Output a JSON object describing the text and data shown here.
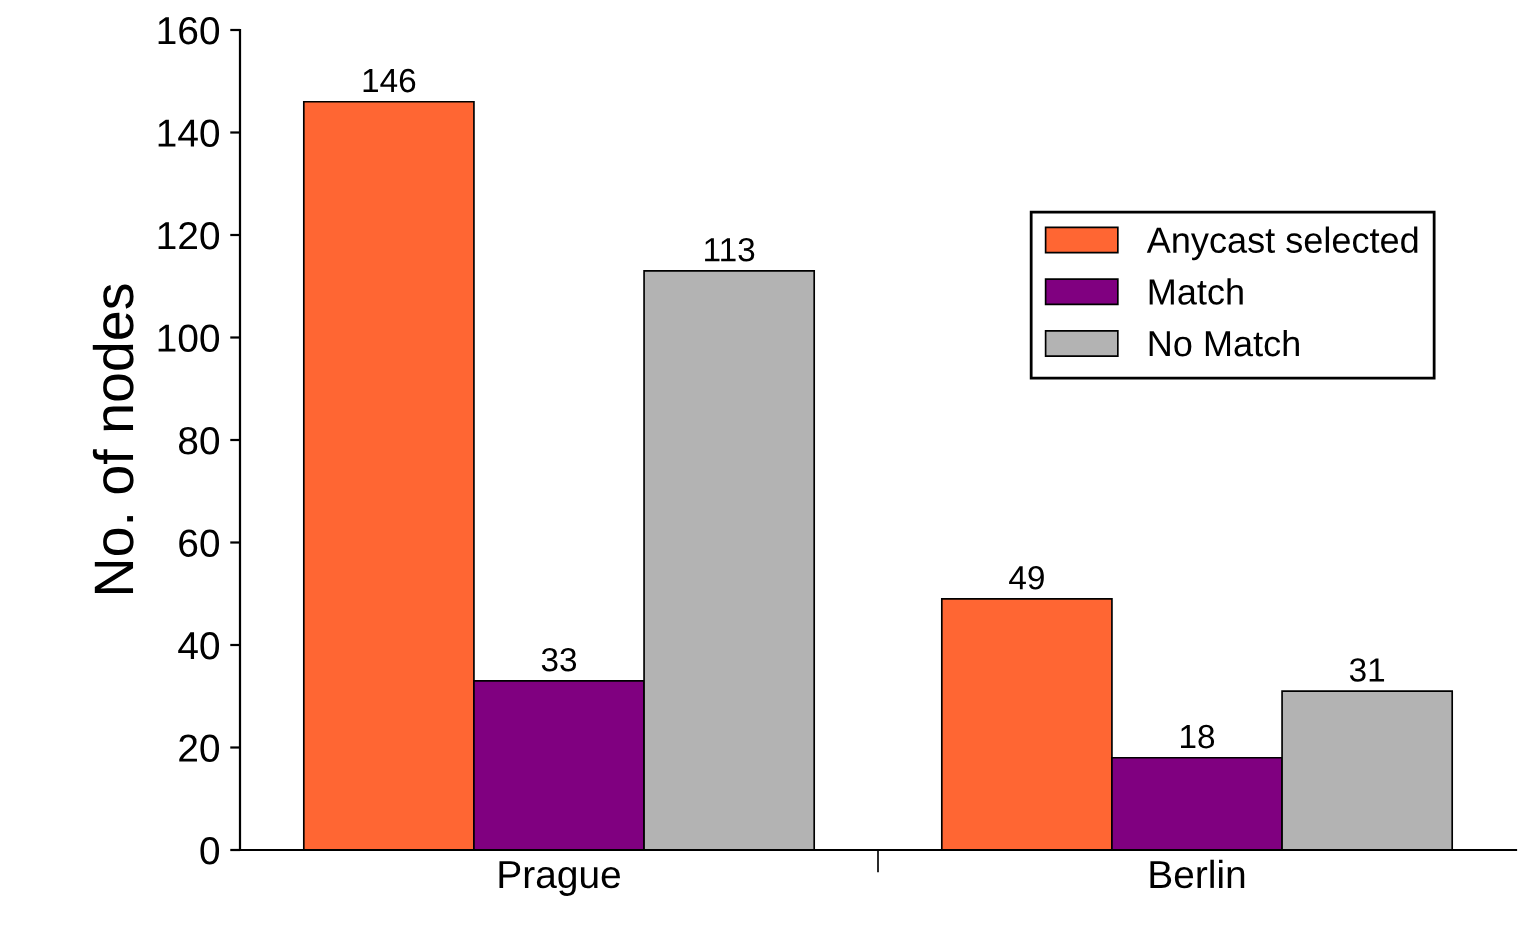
{
  "chart_data": {
    "type": "bar",
    "ylabel": "No. of nodes",
    "categories": [
      "Prague",
      "Berlin"
    ],
    "series": [
      {
        "name": "Anycast selected",
        "color": "#ff6633",
        "values": [
          146,
          49
        ]
      },
      {
        "name": "Match",
        "color": "#800080",
        "values": [
          33,
          18
        ]
      },
      {
        "name": "No Match",
        "color": "#b3b3b3",
        "values": [
          113,
          31
        ]
      }
    ],
    "ylim": [
      0,
      160
    ],
    "yticks": [
      0,
      20,
      40,
      60,
      80,
      100,
      120,
      140,
      160
    ],
    "data_labels": true,
    "legend": "top right",
    "grid": false
  }
}
